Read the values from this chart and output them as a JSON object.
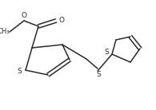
{
  "bg_color": "#ffffff",
  "line_color": "#2a2a2a",
  "line_width": 1.1,
  "font_size": 6.5,
  "figsize": [
    1.95,
    1.38
  ],
  "dpi": 100,
  "xlim": [
    0,
    195
  ],
  "ylim": [
    0,
    138
  ]
}
